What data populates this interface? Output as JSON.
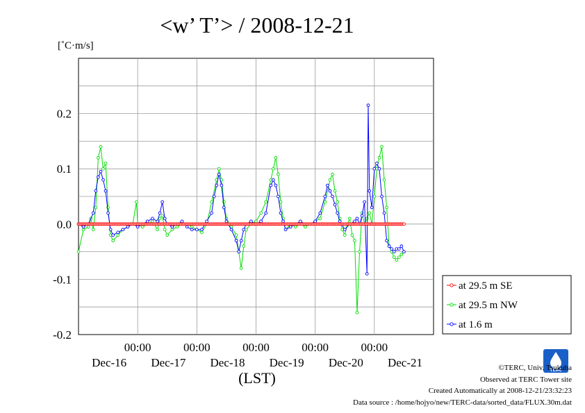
{
  "chart_data": {
    "type": "line",
    "title": "<w’ T’> / 2008-12-21",
    "unit_label": "[˚C·m/s]",
    "xlabel": "(LST)",
    "ylim": [
      -0.2,
      0.3
    ],
    "yticks": [
      {
        "value": 0.2,
        "label": "0.2"
      },
      {
        "value": 0.1,
        "label": "0.1"
      },
      {
        "value": 0.0,
        "label": "0.0"
      },
      {
        "value": -0.1,
        "label": "-0.1"
      },
      {
        "value": -0.2,
        "label": "-0.2"
      }
    ],
    "xlim_hours": [
      0,
      144
    ],
    "xticks": [
      {
        "hour": 24,
        "time": "00:00",
        "day": "Dec-16"
      },
      {
        "hour": 48,
        "time": "00:00",
        "day": "Dec-17"
      },
      {
        "hour": 72,
        "time": "00:00",
        "day": "Dec-18"
      },
      {
        "hour": 96,
        "time": "00:00",
        "day": "Dec-19"
      },
      {
        "hour": 120,
        "time": "00:00",
        "day": "Dec-20"
      },
      {
        "hour": 144,
        "time": "",
        "day": "Dec-21"
      }
    ],
    "grid": true,
    "legend_position": "lower-right, outside plot",
    "series": [
      {
        "name": "at 29.5 m SE",
        "color": "#ff0000",
        "marker": "circle",
        "values": "constant 0.0 at every half-hour step"
      },
      {
        "name": "at 29.5 m NW",
        "color": "#00dd00",
        "marker": "circle",
        "points": [
          [
            0,
            -0.05
          ],
          [
            2,
            -0.01
          ],
          [
            4,
            -0.005
          ],
          [
            5,
            0.01
          ],
          [
            6,
            -0.01
          ],
          [
            7,
            0.03
          ],
          [
            8,
            0.12
          ],
          [
            9,
            0.14
          ],
          [
            10,
            0.1
          ],
          [
            11,
            0.11
          ],
          [
            12,
            0.03
          ],
          [
            13,
            -0.02
          ],
          [
            14,
            -0.03
          ],
          [
            16,
            -0.02
          ],
          [
            18,
            -0.01
          ],
          [
            20,
            -0.005
          ],
          [
            22,
            0.0
          ],
          [
            23.5,
            0.04
          ],
          [
            24,
            0.0
          ],
          [
            26,
            -0.005
          ],
          [
            28,
            0.0
          ],
          [
            30,
            0.005
          ],
          [
            32,
            -0.01
          ],
          [
            33,
            0.01
          ],
          [
            34,
            0.015
          ],
          [
            35,
            -0.01
          ],
          [
            36,
            -0.02
          ],
          [
            38,
            -0.01
          ],
          [
            40,
            -0.005
          ],
          [
            42,
            0.0
          ],
          [
            44,
            0.0
          ],
          [
            46,
            -0.005
          ],
          [
            48,
            -0.01
          ],
          [
            50,
            -0.015
          ],
          [
            52,
            0.0
          ],
          [
            54,
            0.04
          ],
          [
            56,
            0.08
          ],
          [
            57,
            0.1
          ],
          [
            58,
            0.08
          ],
          [
            59,
            0.04
          ],
          [
            60,
            0.01
          ],
          [
            62,
            -0.005
          ],
          [
            64,
            -0.02
          ],
          [
            65,
            -0.05
          ],
          [
            66,
            -0.08
          ],
          [
            67,
            -0.04
          ],
          [
            68,
            -0.01
          ],
          [
            70,
            0.0
          ],
          [
            72,
            0.005
          ],
          [
            74,
            0.02
          ],
          [
            76,
            0.04
          ],
          [
            78,
            0.08
          ],
          [
            79,
            0.1
          ],
          [
            80,
            0.12
          ],
          [
            81,
            0.09
          ],
          [
            82,
            0.04
          ],
          [
            83,
            0.01
          ],
          [
            84,
            -0.01
          ],
          [
            86,
            0.0
          ],
          [
            88,
            -0.005
          ],
          [
            90,
            0.0
          ],
          [
            92,
            -0.005
          ],
          [
            94,
            0.0
          ],
          [
            96,
            0.005
          ],
          [
            98,
            0.01
          ],
          [
            100,
            0.04
          ],
          [
            102,
            0.08
          ],
          [
            103,
            0.09
          ],
          [
            104,
            0.06
          ],
          [
            105,
            0.04
          ],
          [
            106,
            0.01
          ],
          [
            107,
            -0.01
          ],
          [
            108,
            -0.02
          ],
          [
            109,
            0.0
          ],
          [
            110,
            0.01
          ],
          [
            111,
            -0.02
          ],
          [
            112,
            -0.03
          ],
          [
            113,
            -0.16
          ],
          [
            114,
            -0.05
          ],
          [
            115,
            0.02
          ],
          [
            116,
            0.0
          ],
          [
            117,
            0.01
          ],
          [
            118,
            0.02
          ],
          [
            119,
            0.0
          ],
          [
            120,
            0.05
          ],
          [
            121,
            0.1
          ],
          [
            122,
            0.12
          ],
          [
            123,
            0.14
          ],
          [
            124,
            0.08
          ],
          [
            125,
            0.03
          ],
          [
            126,
            -0.04
          ],
          [
            127,
            -0.05
          ],
          [
            128,
            -0.06
          ],
          [
            129,
            -0.065
          ],
          [
            130,
            -0.06
          ],
          [
            131,
            -0.055
          ],
          [
            132,
            -0.05
          ]
        ]
      },
      {
        "name": "at 1.6 m",
        "color": "#0000ff",
        "marker": "circle",
        "points": [
          [
            0,
            0.0
          ],
          [
            2,
            -0.005
          ],
          [
            4,
            0.0
          ],
          [
            6,
            0.02
          ],
          [
            7,
            0.06
          ],
          [
            8,
            0.085
          ],
          [
            9,
            0.095
          ],
          [
            10,
            0.08
          ],
          [
            11,
            0.06
          ],
          [
            12,
            0.02
          ],
          [
            13,
            -0.01
          ],
          [
            14,
            -0.02
          ],
          [
            16,
            -0.015
          ],
          [
            18,
            -0.01
          ],
          [
            20,
            -0.005
          ],
          [
            22,
            0.0
          ],
          [
            24,
            -0.005
          ],
          [
            26,
            0.0
          ],
          [
            28,
            0.005
          ],
          [
            30,
            0.01
          ],
          [
            32,
            0.005
          ],
          [
            33,
            0.02
          ],
          [
            34,
            0.04
          ],
          [
            35,
            0.01
          ],
          [
            36,
            0.0
          ],
          [
            38,
            -0.005
          ],
          [
            40,
            0.0
          ],
          [
            42,
            0.005
          ],
          [
            44,
            -0.005
          ],
          [
            46,
            -0.01
          ],
          [
            48,
            -0.01
          ],
          [
            50,
            -0.01
          ],
          [
            52,
            0.005
          ],
          [
            54,
            0.02
          ],
          [
            55,
            0.05
          ],
          [
            56,
            0.07
          ],
          [
            57,
            0.09
          ],
          [
            58,
            0.07
          ],
          [
            59,
            0.03
          ],
          [
            60,
            0.005
          ],
          [
            62,
            -0.01
          ],
          [
            64,
            -0.03
          ],
          [
            65,
            -0.05
          ],
          [
            66,
            -0.03
          ],
          [
            67,
            -0.01
          ],
          [
            68,
            0.0
          ],
          [
            70,
            0.005
          ],
          [
            72,
            0.0
          ],
          [
            74,
            0.005
          ],
          [
            76,
            0.02
          ],
          [
            78,
            0.07
          ],
          [
            79,
            0.08
          ],
          [
            80,
            0.07
          ],
          [
            81,
            0.05
          ],
          [
            82,
            0.02
          ],
          [
            83,
            0.005
          ],
          [
            84,
            -0.01
          ],
          [
            86,
            -0.005
          ],
          [
            88,
            0.0
          ],
          [
            90,
            0.005
          ],
          [
            92,
            0.0
          ],
          [
            94,
            0.0
          ],
          [
            96,
            0.005
          ],
          [
            98,
            0.02
          ],
          [
            100,
            0.05
          ],
          [
            101,
            0.07
          ],
          [
            102,
            0.06
          ],
          [
            103,
            0.05
          ],
          [
            104,
            0.035
          ],
          [
            105,
            0.02
          ],
          [
            106,
            0.005
          ],
          [
            108,
            -0.01
          ],
          [
            110,
            0.0
          ],
          [
            112,
            0.005
          ],
          [
            113,
            0.01
          ],
          [
            114,
            0.0
          ],
          [
            115,
            0.015
          ],
          [
            116,
            0.04
          ],
          [
            117,
            -0.09
          ],
          [
            117.5,
            0.215
          ],
          [
            118,
            0.06
          ],
          [
            119,
            0.03
          ],
          [
            120,
            0.1
          ],
          [
            121,
            0.11
          ],
          [
            122,
            0.1
          ],
          [
            123,
            0.05
          ],
          [
            124,
            0.02
          ],
          [
            125,
            -0.03
          ],
          [
            126,
            -0.04
          ],
          [
            127,
            -0.045
          ],
          [
            128,
            -0.05
          ],
          [
            129,
            -0.045
          ],
          [
            130,
            -0.045
          ],
          [
            131,
            -0.04
          ],
          [
            132,
            -0.05
          ]
        ]
      }
    ]
  },
  "credits": {
    "copyright": "©TERC, Univ. Tsukuba",
    "site": "Observed at TERC Tower site",
    "created": "Created Automatically at 2008-12-21/23:32:23",
    "source": "Data source : /home/hojyo/new/TERC-data/sorted_data/FLUX.30m.dat"
  },
  "logo": {
    "text": "TERC",
    "color": "#1a5fc7"
  }
}
